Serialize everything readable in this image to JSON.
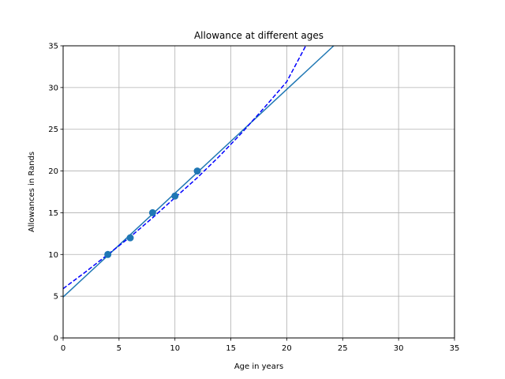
{
  "chart_data": {
    "type": "scatter",
    "title": "Allowance at different ages",
    "xlabel": "Age in years",
    "ylabel": "Allowances in Rands",
    "xlim": [
      0,
      35
    ],
    "ylim": [
      0,
      35
    ],
    "xticks": [
      0,
      5,
      10,
      15,
      20,
      25,
      30,
      35
    ],
    "yticks": [
      0,
      5,
      10,
      15,
      20,
      25,
      30,
      35
    ],
    "grid": true,
    "points": {
      "x": [
        4,
        6,
        8,
        10,
        12
      ],
      "y": [
        10,
        12,
        15,
        17,
        20
      ],
      "color": "#1f77b4"
    },
    "lines": [
      {
        "style": "solid",
        "color": "#1f77b4",
        "x": [
          0,
          24.2
        ],
        "y": [
          4.9,
          35
        ]
      },
      {
        "style": "dashed",
        "color": "#0000ff",
        "x": [
          0,
          2,
          4,
          6,
          8,
          10,
          12,
          14,
          16,
          18,
          20,
          21.7
        ],
        "y": [
          5.9,
          7.9,
          10.0,
          12.1,
          14.4,
          16.8,
          19.2,
          21.8,
          24.6,
          27.6,
          30.7,
          35
        ]
      }
    ]
  }
}
